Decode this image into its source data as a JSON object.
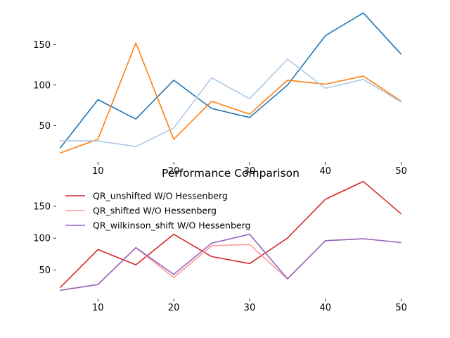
{
  "chart_data": [
    {
      "type": "line",
      "title": "",
      "xlabel": "",
      "ylabel": "",
      "xlim": [
        4.5,
        50.5
      ],
      "ylim": [
        5,
        192
      ],
      "x": [
        5,
        10,
        15,
        20,
        25,
        30,
        35,
        40,
        45,
        50
      ],
      "xticks": [
        10,
        20,
        30,
        40,
        50
      ],
      "yticks": [
        50,
        100,
        150
      ],
      "grid": false,
      "legend": null,
      "series": [
        {
          "color": "#1f77b4",
          "values": [
            22,
            82,
            58,
            106,
            71,
            60,
            100,
            161,
            189,
            138
          ]
        },
        {
          "color": "#ff7f0e",
          "values": [
            16,
            33,
            152,
            33,
            80,
            64,
            106,
            101,
            111,
            80
          ]
        },
        {
          "color": "#aec7e8",
          "values": [
            31,
            31,
            24,
            47,
            109,
            83,
            132,
            96,
            107,
            79
          ]
        }
      ]
    },
    {
      "type": "line",
      "title": "Performance Comparison",
      "xlabel": "",
      "ylabel": "",
      "xlim": [
        4.5,
        50.5
      ],
      "ylim": [
        5,
        192
      ],
      "x": [
        5,
        10,
        15,
        20,
        25,
        30,
        35,
        40,
        45,
        50
      ],
      "xticks": [
        10,
        20,
        30,
        40,
        50
      ],
      "yticks": [
        50,
        100,
        150
      ],
      "grid": false,
      "legend": "top-left",
      "series": [
        {
          "name": "QR_unshifted W/O Hessenberg",
          "color": "#d62728",
          "values": [
            22,
            82,
            58,
            106,
            71,
            60,
            100,
            161,
            189,
            138
          ]
        },
        {
          "name": "QR_shifted W/O Hessenberg",
          "color": "#ff9896",
          "values": [
            18,
            27,
            85,
            38,
            88,
            90,
            36,
            96,
            99,
            93
          ]
        },
        {
          "name": "QR_wilkinson_shift W/O Hessenberg",
          "color": "#9467bd",
          "values": [
            18,
            27,
            85,
            43,
            92,
            106,
            36,
            96,
            99,
            93
          ]
        }
      ]
    }
  ]
}
